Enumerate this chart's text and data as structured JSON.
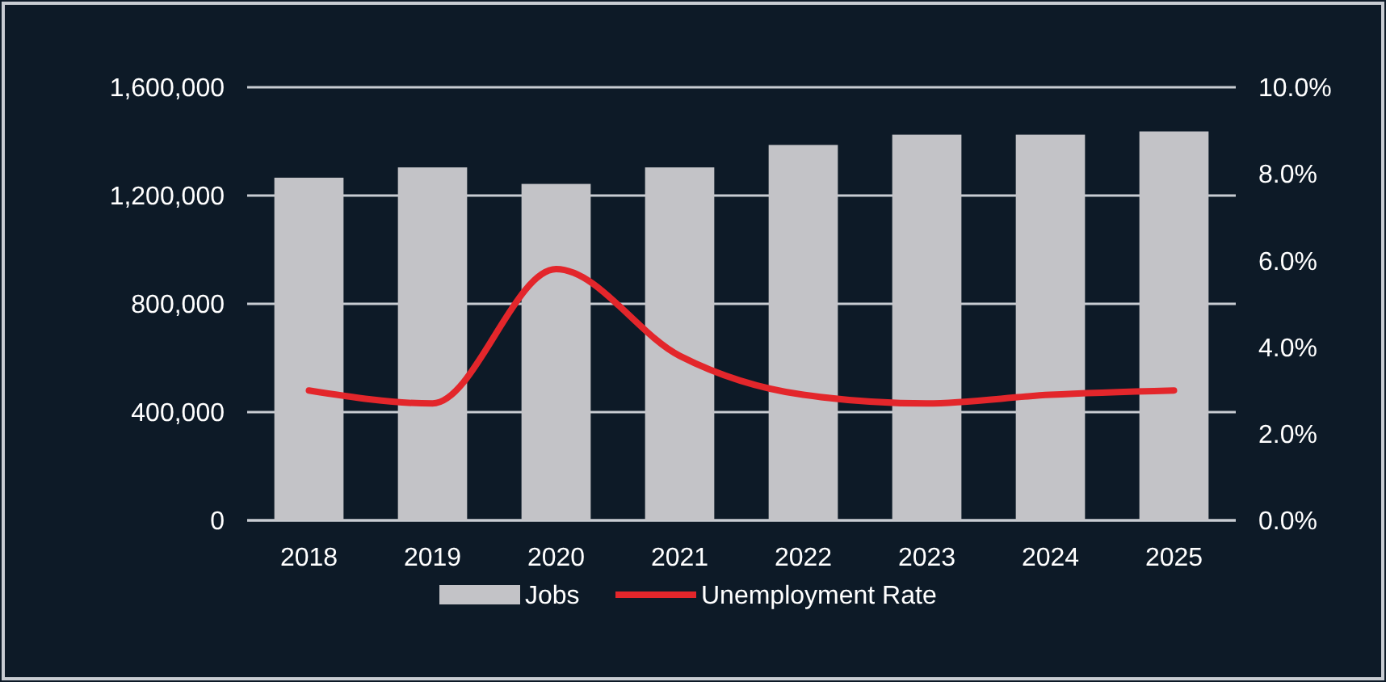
{
  "chart_data": {
    "type": "bar",
    "categories": [
      "2018",
      "2019",
      "2020",
      "2021",
      "2022",
      "2023",
      "2024",
      "2025"
    ],
    "series": [
      {
        "name": "Jobs",
        "color": "#c3c3c7",
        "values": [
          1266000,
          1304000,
          1243000,
          1304000,
          1387000,
          1425000,
          1425000,
          1437000
        ]
      },
      {
        "name": "Unemployment Rate",
        "type": "line",
        "axis": "y2",
        "color": "#e3262b",
        "values": [
          3.0,
          2.7,
          5.8,
          3.8,
          2.9,
          2.7,
          2.9,
          3.0
        ]
      }
    ],
    "ylim": [
      0,
      1600000
    ],
    "yticks": [
      {
        "value": 0,
        "label": "0"
      },
      {
        "value": 400000,
        "label": "400,000"
      },
      {
        "value": 800000,
        "label": "800,000"
      },
      {
        "value": 1200000,
        "label": "1,200,000"
      },
      {
        "value": 1600000,
        "label": "1,600,000"
      }
    ],
    "y2lim": [
      0,
      10
    ],
    "y2ticks": [
      {
        "value": 0,
        "label": "0.0%"
      },
      {
        "value": 2,
        "label": "2.0%"
      },
      {
        "value": 4,
        "label": "4.0%"
      },
      {
        "value": 6,
        "label": "6.0%"
      },
      {
        "value": 8,
        "label": "8.0%"
      },
      {
        "value": 10,
        "label": "10.0%"
      }
    ],
    "grid": "y",
    "legend": "bottom",
    "marker": "none",
    "line_style": "solid"
  }
}
